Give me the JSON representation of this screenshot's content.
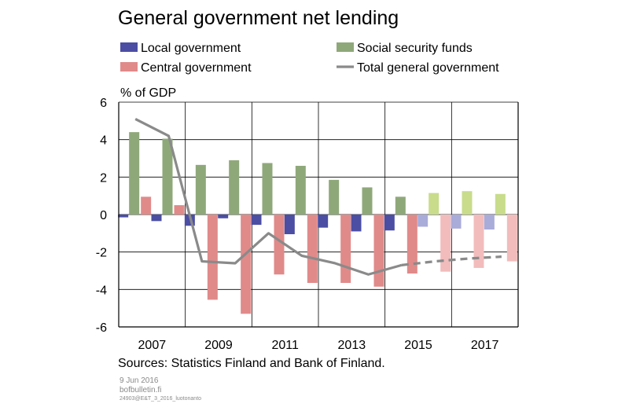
{
  "chart_data": {
    "type": "bar",
    "title": "General government net lending",
    "ylabel": "% of GDP",
    "ylim": [
      -6,
      6
    ],
    "yticks": [
      6,
      4,
      2,
      0,
      -2,
      -4,
      -6
    ],
    "years": [
      2007,
      2008,
      2009,
      2010,
      2011,
      2012,
      2013,
      2014,
      2015,
      2016,
      2017,
      2018
    ],
    "x_tick_labels": [
      "2007",
      "2009",
      "2011",
      "2013",
      "2015",
      "2017"
    ],
    "forecast_from_index": 9,
    "series": [
      {
        "name": "Local government",
        "kind": "bar",
        "color": "#4b4ea3",
        "forecast_color": "#a9abd9",
        "values": [
          -0.15,
          -0.35,
          -0.6,
          -0.2,
          -0.55,
          -1.05,
          -0.7,
          -0.9,
          -0.85,
          -0.65,
          -0.75,
          -0.8
        ]
      },
      {
        "name": "Social security funds",
        "kind": "bar",
        "color": "#8fa87a",
        "forecast_color": "#c8dc8c",
        "values": [
          4.4,
          4.05,
          2.65,
          2.9,
          2.75,
          2.6,
          1.85,
          1.45,
          0.95,
          1.15,
          1.25,
          1.1
        ]
      },
      {
        "name": "Central government",
        "kind": "bar",
        "color": "#e08a8a",
        "forecast_color": "#f2bcbc",
        "values": [
          0.95,
          0.5,
          -4.55,
          -5.3,
          -3.2,
          -3.65,
          -3.65,
          -3.85,
          -3.15,
          -3.05,
          -2.85,
          -2.5
        ]
      },
      {
        "name": "Total general government",
        "kind": "line",
        "color": "#8a8a8a",
        "values": [
          5.1,
          4.2,
          -2.5,
          -2.6,
          -1.0,
          -2.2,
          -2.6,
          -3.2,
          -2.7,
          -2.5,
          -2.35,
          -2.25
        ]
      }
    ],
    "grid": true,
    "legend_placement": "top"
  },
  "source_text": "Sources: Statistics Finland and Bank of Finland.",
  "footer": {
    "date": "9 Jun 2016",
    "site": "bofbulletin.fi",
    "code": "24903@E&T_3_2016_luotonanto"
  }
}
